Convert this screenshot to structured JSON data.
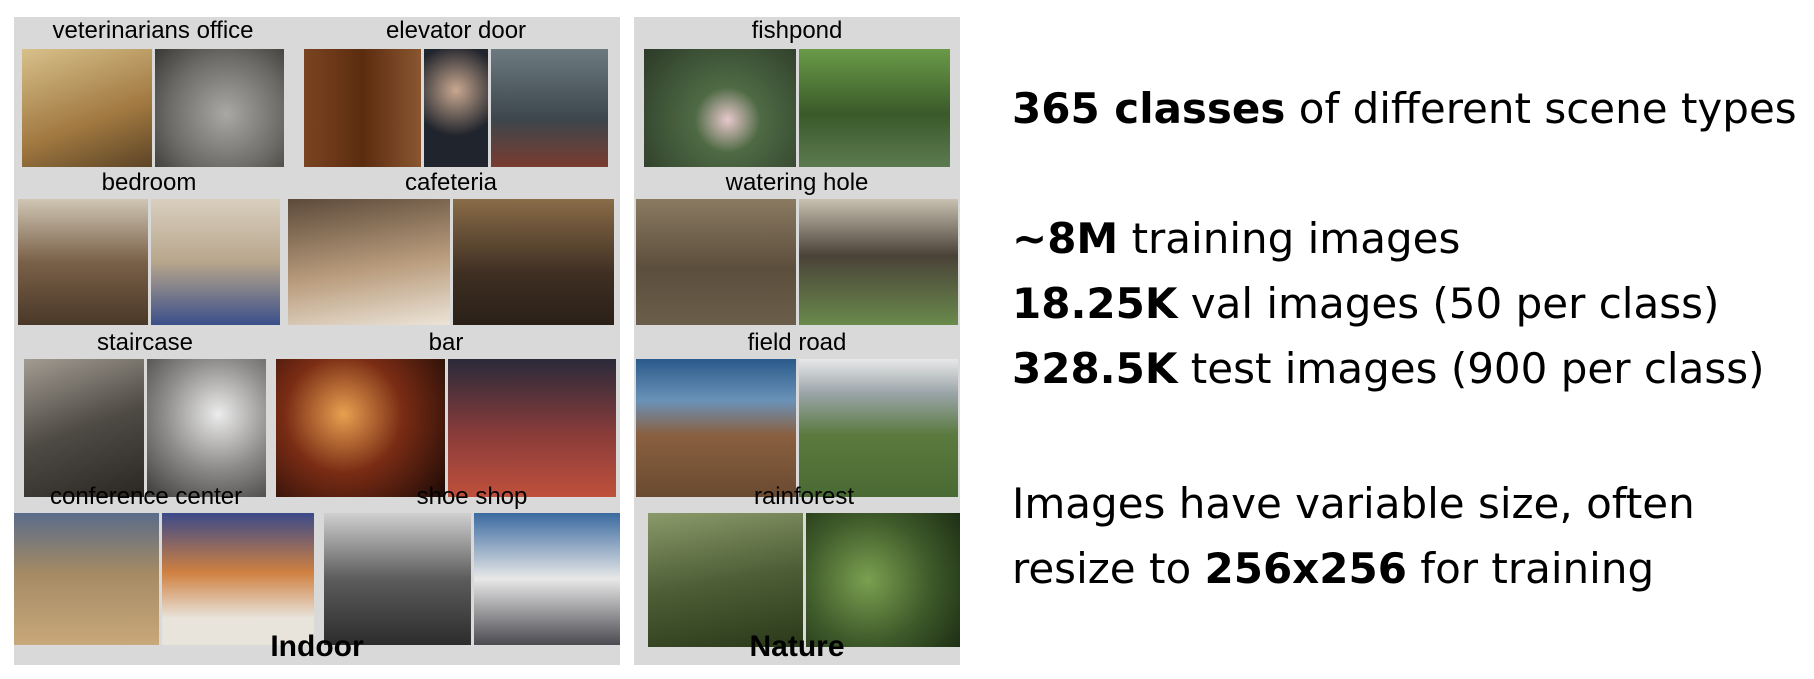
{
  "panels": {
    "indoor": {
      "category_label": "Indoor",
      "scenes": [
        {
          "label": "veterinarians office",
          "thumbs": [
            "#b08a52",
            "#8d8a86"
          ]
        },
        {
          "label": "elevator door",
          "thumbs": [
            "#6b3c1c",
            "#23262e",
            "#4b5a62"
          ]
        },
        {
          "label": "bedroom",
          "thumbs": [
            "#6d5843",
            "#a9a092"
          ]
        },
        {
          "label": "cafeteria",
          "thumbs": [
            "#8e7560",
            "#4b3a2c"
          ]
        },
        {
          "label": "staircase",
          "thumbs": [
            "#4e4a44",
            "#9c9a98"
          ]
        },
        {
          "label": "bar",
          "thumbs": [
            "#4a1c10",
            "#3b2420"
          ]
        },
        {
          "label": "conference center",
          "thumbs": [
            "#9a8265",
            "#3b4a7a"
          ]
        },
        {
          "label": "shoe shop",
          "thumbs": [
            "#6c6c6c",
            "#4a6a82"
          ]
        }
      ]
    },
    "nature": {
      "category_label": "Nature",
      "scenes": [
        {
          "label": "fishpond",
          "thumbs": [
            "#4c5a44",
            "#4e6b38"
          ]
        },
        {
          "label": "watering hole",
          "thumbs": [
            "#6a5a45",
            "#5e6a4e"
          ]
        },
        {
          "label": "field road",
          "thumbs": [
            "#7a5a3e",
            "#6e7a4e"
          ]
        },
        {
          "label": "rainforest",
          "thumbs": [
            "#4e5e36",
            "#3e5a2a"
          ]
        }
      ]
    }
  },
  "text": {
    "line1_bold": "365 classes",
    "line1_rest": " of different scene types",
    "line2_bold": "~8M",
    "line2_rest": " training images",
    "line3_bold": "18.25K",
    "line3_rest": " val images (50 per class)",
    "line4_bold": "328.5K",
    "line4_rest": " test images (900 per class)",
    "line5": "Images have variable size, often",
    "line6_pre": "resize to ",
    "line6_bold": "256x256",
    "line6_post": " for training"
  }
}
